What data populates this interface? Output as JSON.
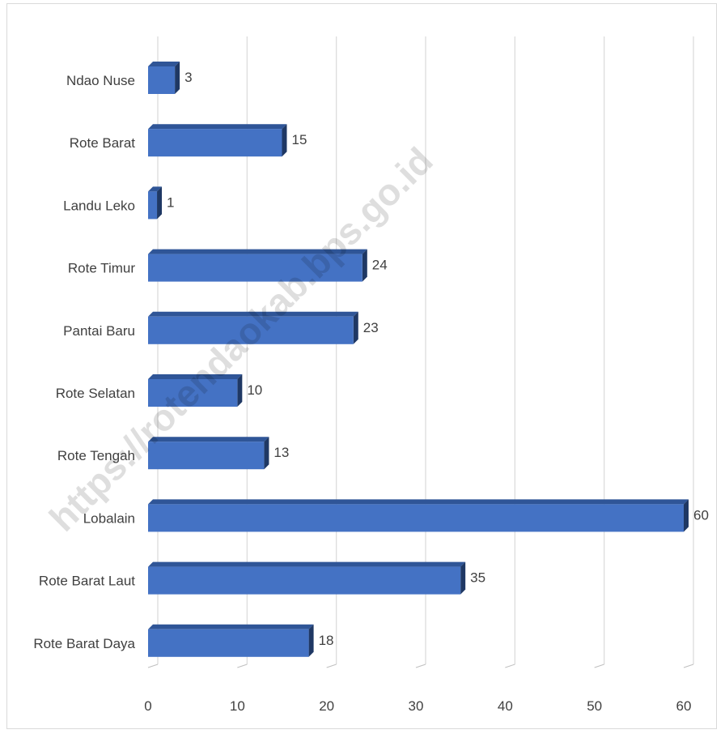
{
  "chart_data": {
    "type": "bar",
    "orientation": "horizontal",
    "categories": [
      "Ndao Nuse",
      "Rote Barat",
      "Landu Leko",
      "Rote Timur",
      "Pantai Baru",
      "Rote Selatan",
      "Rote Tengah",
      "Lobalain",
      "Rote Barat Laut",
      "Rote Barat Daya"
    ],
    "values": [
      3,
      15,
      1,
      24,
      23,
      10,
      13,
      60,
      35,
      18
    ],
    "data_labels": [
      "3",
      "15",
      "1",
      "24",
      "23",
      "10",
      "13",
      "60",
      "35",
      "18"
    ],
    "xlim": [
      0,
      60
    ],
    "xticks": [
      0,
      10,
      20,
      30,
      40,
      50,
      60
    ],
    "xtick_labels": [
      "0",
      "10",
      "20",
      "30",
      "40",
      "50",
      "60"
    ],
    "title": "",
    "xlabel": "",
    "ylabel": "",
    "grid": "vertical",
    "legend": "none",
    "bar_color": "#4472c4",
    "bar_top_color": "#2f5597",
    "bar_side_color": "#1f3864"
  },
  "watermark": "https://rotendaokab.bps.go.id"
}
